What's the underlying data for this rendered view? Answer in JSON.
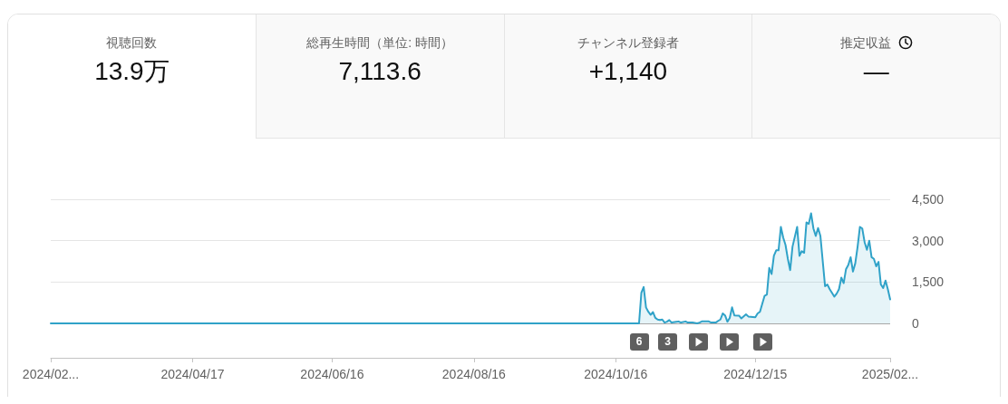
{
  "chart_data": [
    {
      "type": "other",
      "annotations": [
        "視聴回数",
        "13.9万",
        "総再生時間（単位: 時間）",
        "7,113.6",
        "チャンネル登録者",
        "+1,140",
        "推定収益",
        "—"
      ]
    },
    {
      "type": "area",
      "color": "#30a2c8",
      "x": [
        "2024-02-16",
        "2024-10-26",
        "2024-10-27",
        "2024-10-28",
        "2024-10-29",
        "2024-10-30",
        "2024-10-31",
        "2024-11-01",
        "2024-11-02",
        "2024-11-03",
        "2024-11-04",
        "2024-11-05",
        "2024-11-06",
        "2024-11-07",
        "2024-11-08",
        "2024-11-09",
        "2024-11-11",
        "2024-11-12",
        "2024-11-13",
        "2024-11-15",
        "2024-11-16",
        "2024-11-18",
        "2024-11-20",
        "2024-11-21",
        "2024-11-22",
        "2024-11-25",
        "2024-11-26",
        "2024-11-28",
        "2024-11-29",
        "2024-11-30",
        "2024-12-01",
        "2024-12-02",
        "2024-12-03",
        "2024-12-04",
        "2024-12-05",
        "2024-12-06",
        "2024-12-08",
        "2024-12-09",
        "2024-12-11",
        "2024-12-12",
        "2024-12-15",
        "2024-12-16",
        "2024-12-17",
        "2024-12-19",
        "2024-12-20",
        "2024-12-21",
        "2024-12-22",
        "2024-12-23",
        "2024-12-24",
        "2024-12-25",
        "2024-12-26",
        "2024-12-27",
        "2024-12-28",
        "2024-12-29",
        "2024-12-30",
        "2024-12-31",
        "2025-01-02",
        "2025-01-03",
        "2025-01-04",
        "2025-01-05",
        "2025-01-06",
        "2025-01-07",
        "2025-01-08",
        "2025-01-09",
        "2025-01-10",
        "2025-01-11",
        "2025-01-12",
        "2025-01-14",
        "2025-01-15",
        "2025-01-16",
        "2025-01-18",
        "2025-01-19",
        "2025-01-20",
        "2025-01-21",
        "2025-01-22",
        "2025-01-23",
        "2025-01-24",
        "2025-01-25",
        "2025-01-26",
        "2025-01-27",
        "2025-01-28",
        "2025-01-29",
        "2025-01-30",
        "2025-01-31",
        "2025-02-01",
        "2025-02-02",
        "2025-02-03",
        "2025-02-04",
        "2025-02-05",
        "2025-02-06",
        "2025-02-07",
        "2025-02-08",
        "2025-02-09",
        "2025-02-10",
        "2025-02-11"
      ],
      "values": [
        0,
        0,
        1110,
        1320,
        580,
        420,
        310,
        410,
        200,
        140,
        120,
        140,
        30,
        60,
        120,
        30,
        60,
        70,
        30,
        70,
        30,
        30,
        0,
        30,
        70,
        70,
        30,
        30,
        90,
        140,
        360,
        290,
        60,
        200,
        580,
        290,
        280,
        180,
        330,
        250,
        220,
        360,
        420,
        1000,
        1050,
        2010,
        1790,
        2450,
        2650,
        2650,
        3500,
        3110,
        2840,
        2340,
        1930,
        2780,
        3500,
        2450,
        2620,
        2560,
        3660,
        3610,
        3990,
        3440,
        3170,
        3460,
        3170,
        1350,
        1410,
        1240,
        970,
        1080,
        1240,
        1660,
        1460,
        1960,
        2120,
        2400,
        1880,
        2180,
        2780,
        3500,
        3440,
        2950,
        2670,
        3000,
        2400,
        2340,
        2070,
        2230,
        1410,
        1280,
        1550,
        1240,
        870
      ],
      "xlim": [
        "2024-02-16",
        "2025-02-11"
      ],
      "xticks": [
        {
          "value": "2024-02-16",
          "label": "2024/02..."
        },
        {
          "value": "2024-04-17",
          "label": "2024/04/17"
        },
        {
          "value": "2024-06-16",
          "label": "2024/06/16"
        },
        {
          "value": "2024-08-16",
          "label": "2024/08/16"
        },
        {
          "value": "2024-10-16",
          "label": "2024/10/16"
        },
        {
          "value": "2024-12-15",
          "label": "2024/12/15"
        },
        {
          "value": "2025-02-11",
          "label": "2025/02..."
        }
      ],
      "ylim": [
        0,
        4500
      ],
      "yticks": [
        0,
        {
          "value": 1500,
          "label": "1,500"
        },
        {
          "value": 3000,
          "label": "3,000"
        },
        {
          "value": 4500,
          "label": "4,500"
        }
      ],
      "grid": "y",
      "annotations": [
        "6",
        "3"
      ]
    }
  ]
}
